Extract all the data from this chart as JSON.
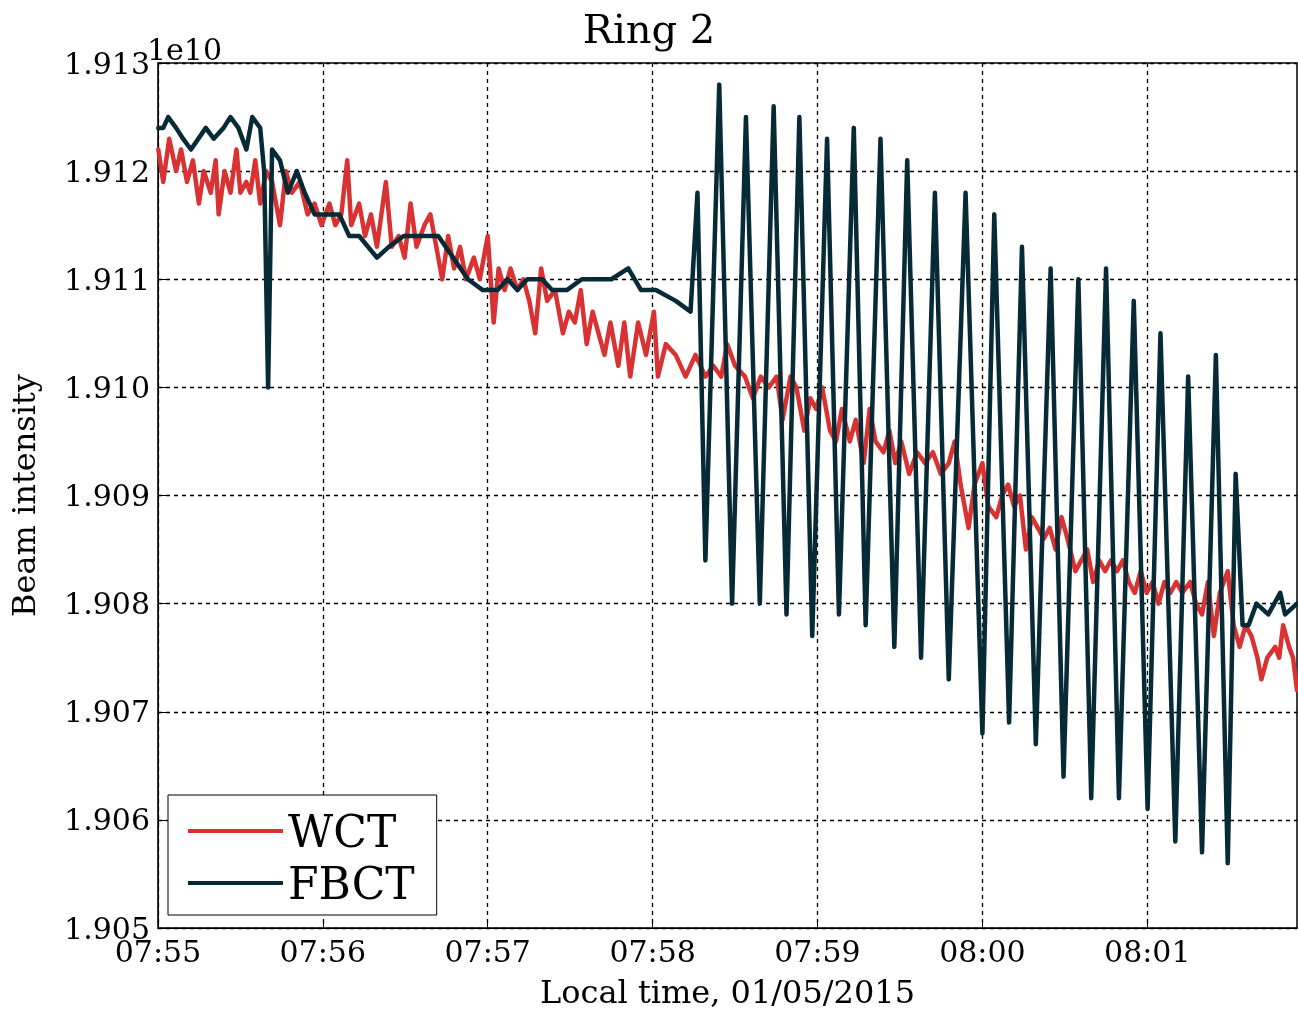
{
  "chart_data": {
    "type": "line",
    "title": "Ring 2",
    "xlabel": "Local time, 01/05/2015",
    "ylabel": "Beam intensity",
    "annotations": [
      "1e10"
    ],
    "xlim": [
      7.91667,
      8.0318
    ],
    "xticks": [
      {
        "value": 7.91667,
        "label": "07:55"
      },
      {
        "value": 7.93333,
        "label": "07:56"
      },
      {
        "value": 7.95,
        "label": "07:57"
      },
      {
        "value": 7.96667,
        "label": "07:58"
      },
      {
        "value": 7.98333,
        "label": "07:59"
      },
      {
        "value": 8.0,
        "label": "08:00"
      },
      {
        "value": 8.01667,
        "label": "08:01"
      }
    ],
    "ylim": [
      1.905,
      1.913
    ],
    "yticks": [
      1.905,
      1.906,
      1.907,
      1.908,
      1.909,
      {
        "value": 1.91,
        "label": "1.910"
      },
      1.911,
      1.912,
      1.913
    ],
    "grid": true,
    "legend": "bottom left",
    "marker": "none",
    "line_style": "solid",
    "series": [
      {
        "name": "WCT",
        "color": "#d93232",
        "x": [
          7.9167,
          7.9172,
          7.9178,
          7.9185,
          7.919,
          7.9196,
          7.9202,
          7.9208,
          7.9213,
          7.922,
          7.9225,
          7.9228,
          7.9234,
          7.924,
          7.9246,
          7.925,
          7.9256,
          7.926,
          7.9265,
          7.927,
          7.9276,
          7.9282,
          7.929,
          7.9296,
          7.9302,
          7.931,
          7.9318,
          7.9325,
          7.9332,
          7.934,
          7.9346,
          7.9352,
          7.9358,
          7.9362,
          7.937,
          7.9376,
          7.9382,
          7.9388,
          7.9397,
          7.9403,
          7.941,
          7.9416,
          7.9422,
          7.9428,
          7.9436,
          7.9442,
          7.9448,
          7.9454,
          7.946,
          7.9466,
          7.9472,
          7.9478,
          7.9486,
          7.9492,
          7.95,
          7.9506,
          7.9511,
          7.9517,
          7.9523,
          7.953,
          7.9536,
          7.9542,
          7.9548,
          7.9554,
          7.956,
          7.9568,
          7.9576,
          7.9582,
          7.9588,
          7.9594,
          7.96,
          7.9606,
          7.9612,
          7.9618,
          7.9624,
          7.9632,
          7.9638,
          7.9644,
          7.9652,
          7.966,
          7.9668,
          7.9672,
          7.968,
          7.969,
          7.97,
          7.971,
          7.972,
          7.9728,
          7.9736,
          7.9742,
          7.975,
          7.976,
          7.9768,
          7.9776,
          7.9784,
          7.9792,
          7.9798,
          7.9806,
          7.9812,
          7.982,
          7.9826,
          7.9832,
          7.9838,
          7.9846,
          7.9852,
          7.9858,
          7.9866,
          7.9872,
          7.988,
          7.9886,
          7.9892,
          7.99,
          7.9906,
          7.9912,
          7.9918,
          7.9926,
          7.9934,
          7.9942,
          7.995,
          7.9958,
          7.9966,
          7.9972,
          7.9978,
          7.9986,
          7.9992,
          8.0,
          8.0006,
          8.0014,
          8.002,
          8.0026,
          8.0032,
          8.0038,
          8.0044,
          8.005,
          8.0056,
          8.0062,
          8.0068,
          8.0074,
          8.008,
          8.0086,
          8.0094,
          8.01,
          8.0106,
          8.0112,
          8.0118,
          8.0124,
          8.013,
          8.0136,
          8.0142,
          8.0148,
          8.0154,
          8.016,
          8.0166,
          8.0172,
          8.0178,
          8.0184,
          8.019,
          8.0196,
          8.0202,
          8.021,
          8.0216,
          8.0222,
          8.0228,
          8.0234,
          8.024,
          8.0248,
          8.0254,
          8.026,
          8.0266,
          8.0272,
          8.0278,
          8.0282,
          8.0288,
          8.0296,
          8.03,
          8.0304,
          8.031,
          8.0314,
          8.0318
        ],
        "values": [
          1.9122,
          1.9119,
          1.9123,
          1.912,
          1.9122,
          1.9119,
          1.9121,
          1.9117,
          1.912,
          1.9118,
          1.9121,
          1.9116,
          1.912,
          1.9118,
          1.9122,
          1.9118,
          1.9119,
          1.9118,
          1.9121,
          1.9117,
          1.912,
          1.9119,
          1.9115,
          1.912,
          1.9118,
          1.9119,
          1.9116,
          1.9117,
          1.9115,
          1.9117,
          1.9115,
          1.9116,
          1.9121,
          1.9115,
          1.9117,
          1.9114,
          1.9116,
          1.9113,
          1.9119,
          1.9113,
          1.9114,
          1.9112,
          1.9117,
          1.9113,
          1.9115,
          1.9116,
          1.9113,
          1.911,
          1.9114,
          1.9111,
          1.9113,
          1.911,
          1.9112,
          1.911,
          1.9114,
          1.9106,
          1.9111,
          1.9109,
          1.9111,
          1.9109,
          1.911,
          1.9108,
          1.9105,
          1.9111,
          1.9108,
          1.9109,
          1.9105,
          1.9107,
          1.9106,
          1.9109,
          1.9104,
          1.9107,
          1.9105,
          1.9103,
          1.9106,
          1.9102,
          1.9106,
          1.9101,
          1.9106,
          1.9103,
          1.9107,
          1.9101,
          1.9104,
          1.9103,
          1.9101,
          1.9103,
          1.9101,
          1.9102,
          1.9101,
          1.9104,
          1.9102,
          1.9101,
          1.9099,
          1.9101,
          1.91,
          1.9101,
          1.9097,
          1.9101,
          1.91,
          1.9096,
          1.9099,
          1.9098,
          1.91,
          1.9096,
          1.9095,
          1.9098,
          1.9095,
          1.9097,
          1.9093,
          1.9098,
          1.9095,
          1.9094,
          1.9096,
          1.9093,
          1.9095,
          1.9092,
          1.9094,
          1.9093,
          1.9094,
          1.9092,
          1.9093,
          1.9095,
          1.9091,
          1.9087,
          1.9091,
          1.9093,
          1.9089,
          1.9088,
          1.909,
          1.9091,
          1.9089,
          1.909,
          1.9085,
          1.9088,
          1.9087,
          1.9086,
          1.9087,
          1.9085,
          1.9088,
          1.9086,
          1.9083,
          1.9084,
          1.9085,
          1.9082,
          1.9084,
          1.9083,
          1.9084,
          1.9083,
          1.9084,
          1.9082,
          1.9081,
          1.9083,
          1.9081,
          1.9082,
          1.908,
          1.9082,
          1.9081,
          1.9082,
          1.9081,
          1.9082,
          1.908,
          1.9079,
          1.9082,
          1.9077,
          1.9081,
          1.9083,
          1.9078,
          1.9076,
          1.9078,
          1.9077,
          1.9075,
          1.9073,
          1.9075,
          1.9076,
          1.9075,
          1.9078,
          1.9076,
          1.9075,
          1.9072
        ]
      },
      {
        "name": "FBCT",
        "color": "#062a36",
        "x": [
          7.9167,
          7.9172,
          7.9177,
          7.9185,
          7.9192,
          7.92,
          7.9215,
          7.9223,
          7.9233,
          7.924,
          7.9248,
          7.9256,
          7.9262,
          7.927,
          7.9274,
          7.9278,
          7.9282,
          7.929,
          7.9298,
          7.9307,
          7.9315,
          7.9325,
          7.934,
          7.935,
          7.936,
          7.937,
          7.9388,
          7.94,
          7.9415,
          7.943,
          7.945,
          7.9465,
          7.948,
          7.9495,
          7.951,
          7.952,
          7.953,
          7.954,
          7.9555,
          7.9565,
          7.958,
          7.9595,
          7.961,
          7.9625,
          7.9642,
          7.9655,
          7.967,
          7.969,
          7.9705,
          7.9712,
          7.972,
          7.9734,
          7.9747,
          7.9761,
          7.9775,
          7.9789,
          7.9802,
          7.9815,
          7.9828,
          7.9843,
          7.9855,
          7.987,
          7.9882,
          7.9897,
          7.9911,
          7.9924,
          7.9938,
          7.9952,
          7.9966,
          7.9983,
          8.0,
          8.0012,
          8.0027,
          8.004,
          8.0054,
          8.0069,
          8.0082,
          8.0097,
          8.011,
          8.0125,
          8.0138,
          8.0153,
          8.0167,
          8.018,
          8.0195,
          8.0208,
          8.0222,
          8.0236,
          8.0248,
          8.0256,
          8.0263,
          8.0269,
          8.0277,
          8.0289,
          8.0301,
          8.0306,
          8.0318
        ],
        "values": [
          1.9124,
          1.9124,
          1.9125,
          1.9124,
          1.9123,
          1.9122,
          1.9124,
          1.9123,
          1.9124,
          1.9125,
          1.9124,
          1.9122,
          1.9125,
          1.9124,
          1.912,
          1.91,
          1.9122,
          1.9121,
          1.9118,
          1.912,
          1.9118,
          1.9116,
          1.9116,
          1.9116,
          1.9114,
          1.9114,
          1.9112,
          1.9113,
          1.9114,
          1.9114,
          1.9114,
          1.9112,
          1.911,
          1.9109,
          1.9109,
          1.911,
          1.9109,
          1.911,
          1.911,
          1.9109,
          1.9109,
          1.911,
          1.911,
          1.911,
          1.9111,
          1.9109,
          1.9109,
          1.9108,
          1.9107,
          1.9118,
          1.9084,
          1.9128,
          1.908,
          1.9125,
          1.908,
          1.9126,
          1.9079,
          1.9125,
          1.9077,
          1.9123,
          1.9079,
          1.9124,
          1.9078,
          1.9123,
          1.9076,
          1.9121,
          1.9075,
          1.9118,
          1.9073,
          1.9118,
          1.9068,
          1.9116,
          1.9069,
          1.9113,
          1.9067,
          1.9111,
          1.9064,
          1.911,
          1.9062,
          1.9111,
          1.9062,
          1.9108,
          1.9061,
          1.9105,
          1.9058,
          1.9101,
          1.9057,
          1.9103,
          1.9056,
          1.9092,
          1.9078,
          1.9078,
          1.908,
          1.9079,
          1.9081,
          1.9079,
          1.908
        ]
      }
    ]
  }
}
